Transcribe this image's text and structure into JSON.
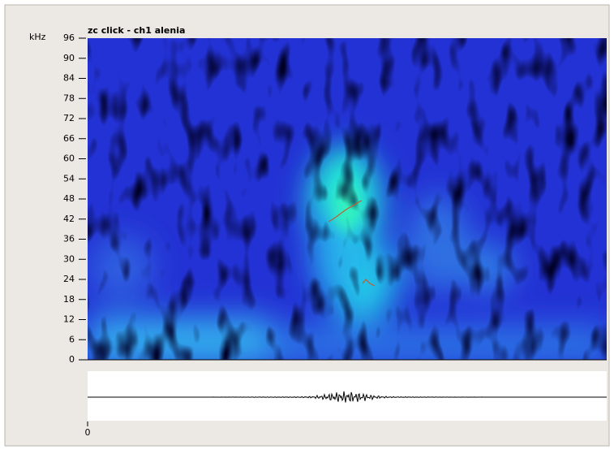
{
  "plot": {
    "title": "zc click - ch1 alenia",
    "y_unit": "kHz",
    "ylim": [
      0,
      96
    ],
    "yticks": [
      0,
      6,
      12,
      18,
      24,
      30,
      36,
      42,
      48,
      54,
      60,
      66,
      72,
      78,
      84,
      90,
      96
    ],
    "xticks": [
      0
    ]
  }
}
